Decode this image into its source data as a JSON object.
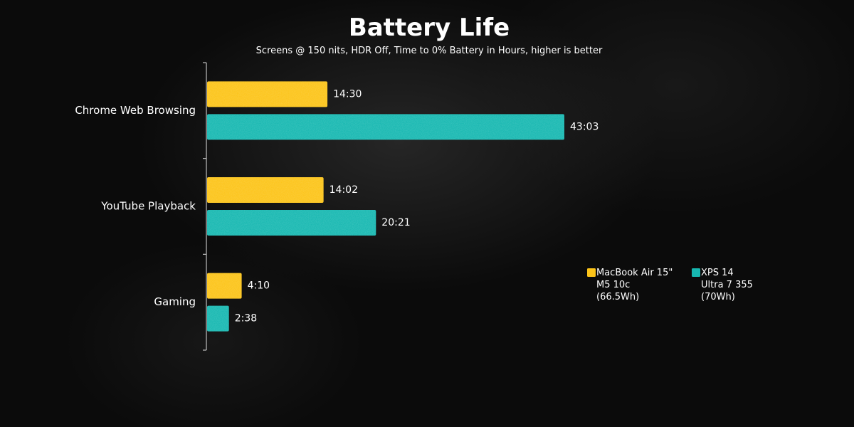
{
  "chart_data": {
    "type": "bar",
    "orientation": "horizontal",
    "title": "Battery Life",
    "subtitle": "Screens @ 150 nits, HDR Off, Time to 0% Battery in Hours, higher is better",
    "categories": [
      "Chrome Web Browsing",
      "YouTube Playback",
      "Gaming"
    ],
    "unit": "hours",
    "xlim": [
      0,
      43.05
    ],
    "grid": false,
    "legend_position": "right",
    "series": [
      {
        "name": "MacBook Air 15\" M5 10c (66.5Wh)",
        "legend_lines": [
          "MacBook Air 15\"",
          "M5 10c",
          "(66.5Wh)"
        ],
        "color": "#fcc419",
        "values": [
          14.5,
          14.033,
          4.167
        ],
        "labels": [
          "14:30",
          "14:02",
          "4:10"
        ]
      },
      {
        "name": "XPS 14 Ultra 7 355 (70Wh)",
        "legend_lines": [
          "XPS 14",
          "Ultra 7 355",
          "(70Wh)"
        ],
        "color": "#17b8b1",
        "values": [
          43.05,
          20.35,
          2.633
        ],
        "labels": [
          "43:03",
          "20:21",
          "2:38"
        ]
      }
    ]
  }
}
